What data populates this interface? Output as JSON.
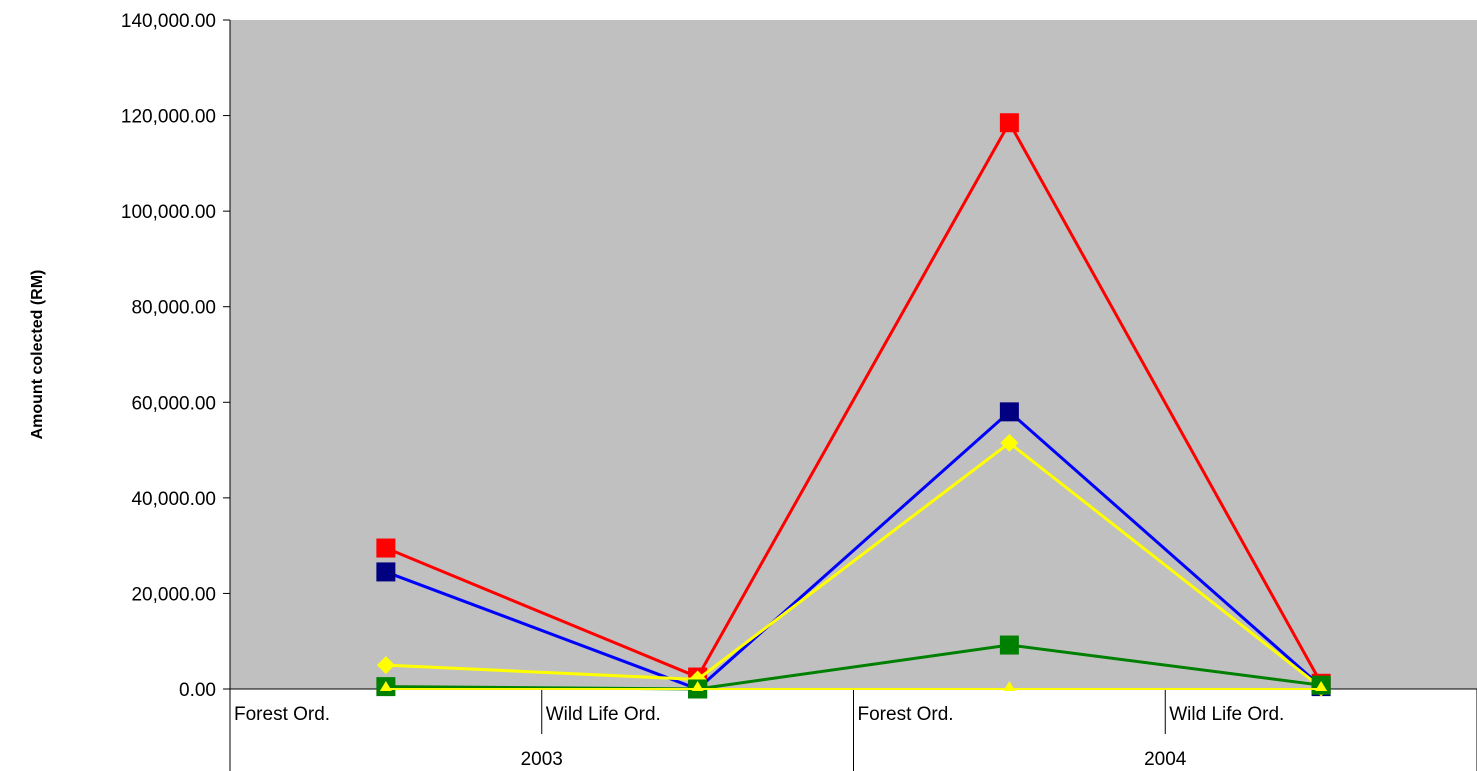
{
  "chart_data": {
    "type": "line",
    "title": "",
    "ylabel": "Amount colected (RM)",
    "xlabel": "",
    "ylim": [
      0,
      140000
    ],
    "y_ticks": [
      0,
      20000,
      40000,
      60000,
      80000,
      100000,
      120000,
      140000
    ],
    "y_tick_labels": [
      "0.00",
      "20,000.00",
      "40,000.00",
      "60,000.00",
      "80,000.00",
      "100,000.00",
      "120,000.00",
      "140,000.00"
    ],
    "categories": [
      "Forest Ord.",
      "Wild Life Ord.",
      "Forest Ord.",
      "Wild Life Ord."
    ],
    "category_groups": [
      {
        "label": "2003",
        "span": 2
      },
      {
        "label": "2004",
        "span": 2
      }
    ],
    "grid": false,
    "plot_background": "#c0c0c0",
    "legend": "none",
    "series": [
      {
        "color": "#ff0000",
        "line_color": "#ff0000",
        "marker": "square",
        "marker_color": "#ff0000",
        "values": [
          29500,
          2500,
          118500,
          1200
        ]
      },
      {
        "color": "#000080",
        "line_color": "#0000ff",
        "marker": "square",
        "marker_color": "#000080",
        "values": [
          24500,
          0,
          58000,
          500
        ]
      },
      {
        "color": "#ffff00",
        "line_color": "#ffff00",
        "marker": "diamond",
        "marker_color": "#ffff00",
        "values": [
          5000,
          2000,
          51500,
          300
        ]
      },
      {
        "color": "#008000",
        "line_color": "#008000",
        "marker": "square",
        "marker_color": "#008000",
        "values": [
          500,
          0,
          9200,
          800
        ]
      },
      {
        "color": "#ffff00",
        "line_color": "#ffff00",
        "marker": "triangle",
        "marker_color": "#ffff00",
        "values": [
          0,
          0,
          0,
          0
        ]
      }
    ]
  }
}
